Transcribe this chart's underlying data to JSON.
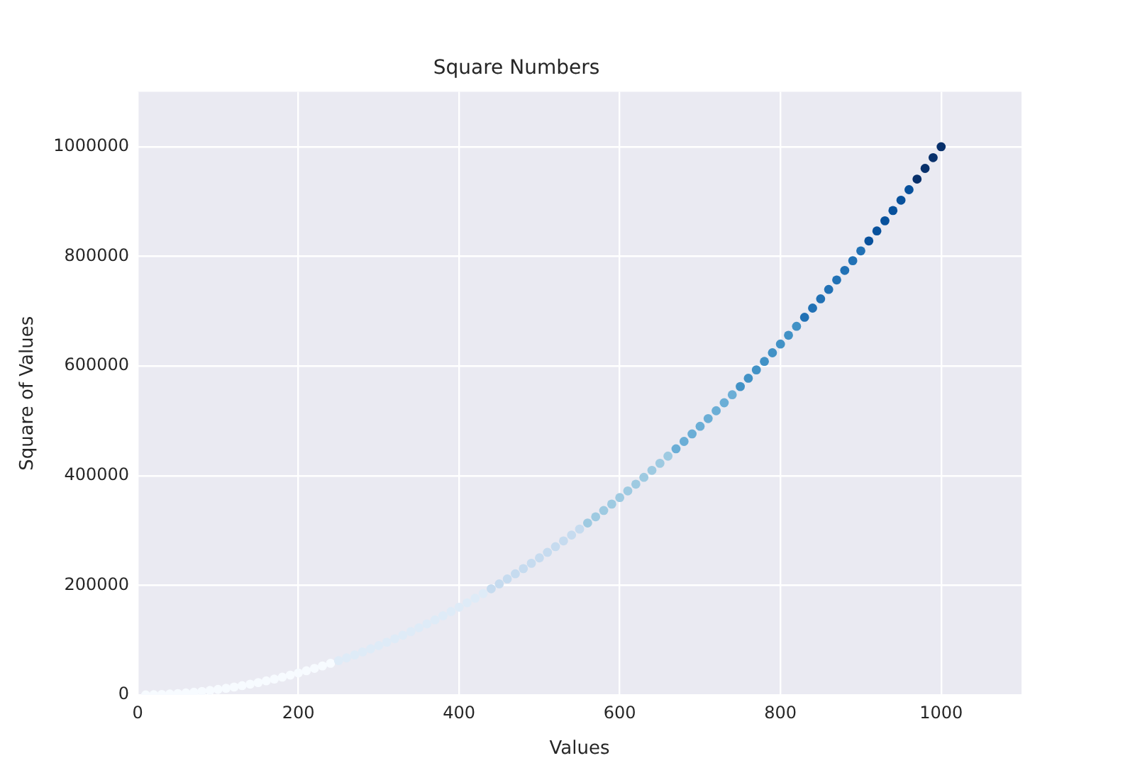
{
  "chart_data": {
    "type": "scatter",
    "title": "Square Numbers",
    "xlabel": "Values",
    "ylabel": "Square of Values",
    "x": [
      10,
      20,
      30,
      40,
      50,
      60,
      70,
      80,
      90,
      100,
      110,
      120,
      130,
      140,
      150,
      160,
      170,
      180,
      190,
      200,
      210,
      220,
      230,
      240,
      250,
      260,
      270,
      280,
      290,
      300,
      310,
      320,
      330,
      340,
      350,
      360,
      370,
      380,
      390,
      400,
      410,
      420,
      430,
      440,
      450,
      460,
      470,
      480,
      490,
      500,
      510,
      520,
      530,
      540,
      550,
      560,
      570,
      580,
      590,
      600,
      610,
      620,
      630,
      640,
      650,
      660,
      670,
      680,
      690,
      700,
      710,
      720,
      730,
      740,
      750,
      760,
      770,
      780,
      790,
      800,
      810,
      820,
      830,
      840,
      850,
      860,
      870,
      880,
      890,
      900,
      910,
      920,
      930,
      940,
      950,
      960,
      970,
      980,
      990,
      1000
    ],
    "values": [
      100,
      400,
      900,
      1600,
      2500,
      3600,
      4900,
      6400,
      8100,
      10000,
      12100,
      14400,
      16900,
      19600,
      22500,
      25600,
      28900,
      32400,
      36100,
      40000,
      44100,
      48400,
      52900,
      57600,
      62500,
      67600,
      72900,
      78400,
      84100,
      90000,
      96100,
      102400,
      108900,
      115600,
      122500,
      129600,
      136900,
      144400,
      152100,
      160000,
      168100,
      176400,
      184900,
      193600,
      202500,
      211600,
      220900,
      230400,
      240100,
      250000,
      260100,
      270400,
      280900,
      291600,
      302500,
      313600,
      324900,
      336400,
      348100,
      360000,
      372100,
      384400,
      396900,
      409600,
      422500,
      435600,
      448900,
      462400,
      476100,
      490000,
      504100,
      518400,
      532900,
      547600,
      562500,
      577600,
      592900,
      608400,
      624100,
      640000,
      656100,
      672400,
      688900,
      705600,
      722500,
      739600,
      756900,
      774400,
      792100,
      810000,
      828100,
      846400,
      864900,
      883600,
      902500,
      921600,
      940900,
      960400,
      980100,
      1000000
    ],
    "colors": [
      "#f7fbff",
      "#f7fbff",
      "#f7fbff",
      "#f7fbff",
      "#f7fbff",
      "#f7fbff",
      "#f7fbff",
      "#f7fbff",
      "#f7fbff",
      "#f7fbff",
      "#f7fbff",
      "#f7fbff",
      "#f7fbff",
      "#f7fbff",
      "#f7fbff",
      "#f7fbff",
      "#f7fbff",
      "#f7fbff",
      "#f7fbff",
      "#f7fbff",
      "#f7fbff",
      "#f7fbff",
      "#f7fbff",
      "#f7fbff",
      "#deebf7",
      "#deebf7",
      "#deebf7",
      "#deebf7",
      "#deebf7",
      "#deebf7",
      "#deebf7",
      "#deebf7",
      "#deebf7",
      "#deebf7",
      "#deebf7",
      "#deebf7",
      "#deebf7",
      "#deebf7",
      "#deebf7",
      "#deebf7",
      "#deebf7",
      "#deebf7",
      "#deebf7",
      "#c6dbef",
      "#c6dbef",
      "#c6dbef",
      "#c6dbef",
      "#c6dbef",
      "#c6dbef",
      "#c6dbef",
      "#c6dbef",
      "#c6dbef",
      "#c6dbef",
      "#c6dbef",
      "#c6dbef",
      "#9ecae1",
      "#9ecae1",
      "#9ecae1",
      "#9ecae1",
      "#9ecae1",
      "#9ecae1",
      "#9ecae1",
      "#9ecae1",
      "#9ecae1",
      "#9ecae1",
      "#9ecae1",
      "#6baed6",
      "#6baed6",
      "#6baed6",
      "#6baed6",
      "#6baed6",
      "#6baed6",
      "#6baed6",
      "#6baed6",
      "#4292c6",
      "#4292c6",
      "#4292c6",
      "#4292c6",
      "#4292c6",
      "#4292c6",
      "#4292c6",
      "#4292c6",
      "#2171b5",
      "#2171b5",
      "#2171b5",
      "#2171b5",
      "#2171b5",
      "#2171b5",
      "#2171b5",
      "#2171b5",
      "#08519c",
      "#08519c",
      "#08519c",
      "#08519c",
      "#08519c",
      "#08519c",
      "#08306b",
      "#08306b",
      "#08306b",
      "#08306b"
    ],
    "xlim": [
      0,
      1100
    ],
    "xticks": [
      0,
      200,
      400,
      600,
      800,
      1000
    ],
    "ylim": [
      0,
      1100000
    ],
    "yticks": [
      0,
      200000,
      400000,
      600000,
      800000,
      1000000
    ],
    "grid": true,
    "marker": "circle"
  }
}
